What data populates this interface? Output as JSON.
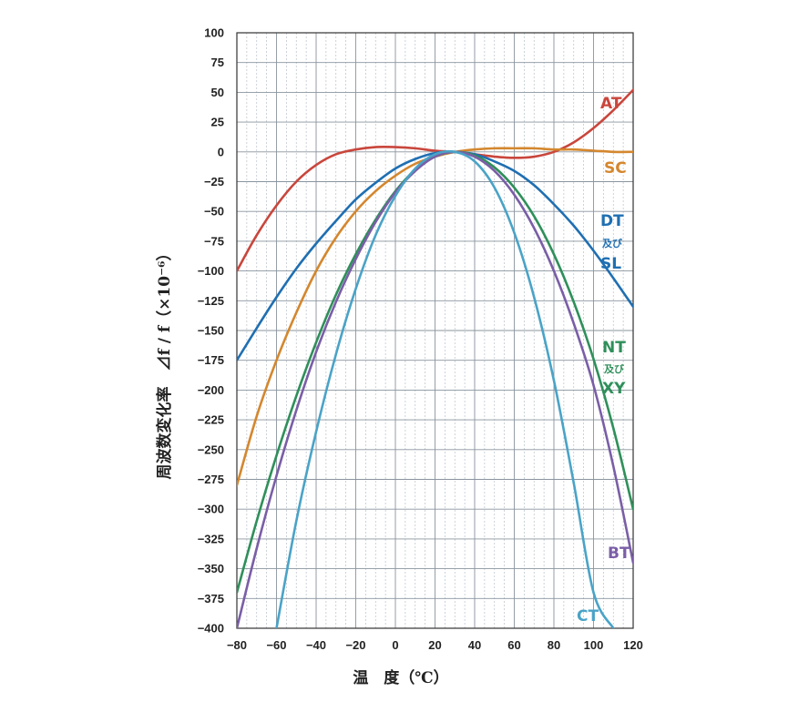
{
  "chart_data": {
    "type": "line",
    "title": "",
    "xlabel": "温　度（℃）",
    "ylabel": "周波数変化率　⊿f / f（×10⁻⁶）",
    "xlim": [
      -80,
      120
    ],
    "ylim": [
      -400,
      100
    ],
    "x_ticks": [
      -80,
      -60,
      -40,
      -20,
      0,
      20,
      40,
      60,
      80,
      100,
      120
    ],
    "y_ticks": [
      100,
      75,
      50,
      25,
      0,
      -25,
      -50,
      -75,
      -100,
      -125,
      -150,
      -175,
      -200,
      -225,
      -250,
      -275,
      -300,
      -325,
      -350,
      -375,
      -400
    ],
    "x_tick_labels": [
      "−80",
      "−60",
      "−40",
      "−20",
      "0",
      "20",
      "40",
      "60",
      "80",
      "100",
      "120"
    ],
    "y_tick_labels": [
      "100",
      "75",
      "50",
      "25",
      "0",
      "−25",
      "−50",
      "−75",
      "−100",
      "−125",
      "−150",
      "−175",
      "−200",
      "−225",
      "−250",
      "−275",
      "−300",
      "−325",
      "−350",
      "−375",
      "−400"
    ],
    "grid": true,
    "series": [
      {
        "name": "AT",
        "color": "#c9463c",
        "x": [
          -80,
          -70,
          -60,
          -50,
          -40,
          -30,
          -20,
          -10,
          0,
          10,
          20,
          30,
          40,
          50,
          60,
          70,
          80,
          90,
          100,
          110,
          120
        ],
        "y": [
          -100,
          -70,
          -45,
          -25,
          -11,
          -2,
          2,
          4,
          4,
          3,
          1,
          0,
          -2,
          -4,
          -5,
          -4,
          0,
          8,
          20,
          35,
          52
        ]
      },
      {
        "name": "SC",
        "color": "#d4872e",
        "x": [
          -80,
          -70,
          -60,
          -50,
          -40,
          -30,
          -20,
          -10,
          0,
          10,
          20,
          30,
          40,
          50,
          60,
          70,
          80,
          90,
          100,
          110,
          120
        ],
        "y": [
          -280,
          -222,
          -175,
          -135,
          -100,
          -72,
          -50,
          -33,
          -20,
          -10,
          -4,
          0,
          2,
          3,
          3,
          3,
          2,
          2,
          1,
          0,
          0
        ]
      },
      {
        "name": "DT及びSL",
        "color": "#1f6fb2",
        "x": [
          -80,
          -70,
          -60,
          -50,
          -40,
          -30,
          -20,
          -10,
          0,
          10,
          20,
          30,
          40,
          50,
          60,
          70,
          80,
          90,
          100,
          110,
          120
        ],
        "y": [
          -175,
          -148,
          -122,
          -98,
          -77,
          -58,
          -40,
          -26,
          -14,
          -6,
          -1,
          0,
          -2,
          -8,
          -16,
          -28,
          -44,
          -62,
          -83,
          -106,
          -130
        ]
      },
      {
        "name": "NT及びXY",
        "color": "#2f8f5a",
        "x": [
          -80,
          -70,
          -60,
          -50,
          -40,
          -30,
          -20,
          -10,
          0,
          10,
          20,
          30,
          40,
          50,
          60,
          70,
          80,
          90,
          100,
          110,
          120
        ],
        "y": [
          -370,
          -310,
          -255,
          -205,
          -160,
          -120,
          -86,
          -57,
          -33,
          -15,
          -4,
          0,
          -3,
          -13,
          -30,
          -54,
          -86,
          -126,
          -174,
          -232,
          -300
        ]
      },
      {
        "name": "BT",
        "color": "#7a5ea7",
        "x": [
          -80,
          -70,
          -60,
          -50,
          -40,
          -30,
          -20,
          -10,
          0,
          10,
          20,
          30,
          40,
          50,
          60,
          70,
          80,
          90,
          100,
          110,
          120
        ],
        "y": [
          -400,
          -333,
          -272,
          -217,
          -168,
          -126,
          -90,
          -59,
          -34,
          -16,
          -4,
          0,
          -4,
          -16,
          -36,
          -64,
          -100,
          -144,
          -196,
          -264,
          -345
        ]
      },
      {
        "name": "CT",
        "color": "#4aa3c7",
        "x": [
          -60,
          -50,
          -40,
          -30,
          -20,
          -10,
          0,
          10,
          20,
          30,
          40,
          50,
          60,
          70,
          80,
          90,
          100,
          110
        ],
        "y": [
          -400,
          -310,
          -235,
          -170,
          -115,
          -70,
          -37,
          -14,
          -2,
          0,
          -8,
          -30,
          -68,
          -122,
          -192,
          -278,
          -370,
          -400
        ]
      }
    ],
    "series_labels": {
      "AT": "AT",
      "SC": "SC",
      "DT": "DT",
      "DT_and": "及び",
      "SL": "SL",
      "NT": "NT",
      "NT_and": "及び",
      "XY": "XY",
      "BT": "BT",
      "CT": "CT"
    }
  }
}
